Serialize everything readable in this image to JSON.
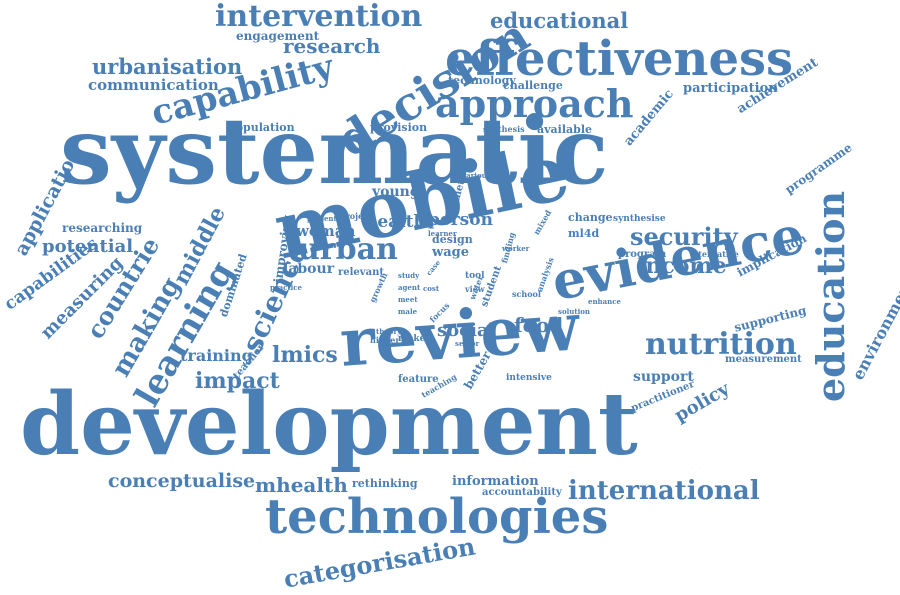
{
  "colors": {
    "word": "#4a7fb5",
    "background": "#ffffff"
  },
  "words": [
    "development",
    "systematic",
    "mobile",
    "review",
    "evidence",
    "effectiveness",
    "technologies",
    "approach",
    "decision",
    "capability",
    "intervention",
    "educational",
    "research",
    "engagement",
    "urbanisation",
    "communication",
    "technology",
    "challenge",
    "participation",
    "population",
    "provision",
    "synthesis",
    "available",
    "academic",
    "achievement",
    "programme",
    "application",
    "researching",
    "potential",
    "capabilities",
    "measuring",
    "countrie",
    "making",
    "learning",
    "middle",
    "science",
    "urban",
    "health",
    "person",
    "woman",
    "security",
    "income",
    "change",
    "synthesise",
    "ml4d",
    "program",
    "alternative",
    "implication",
    "education",
    "environment",
    "nutrition",
    "food",
    "social",
    "labour",
    "relevant",
    "training",
    "teacher",
    "lmics",
    "impact",
    "support",
    "policy",
    "measurement",
    "practitioner",
    "supporting",
    "conceptualise",
    "mhealth",
    "rethinking",
    "information",
    "accountability",
    "international",
    "categorisation",
    "young",
    "method",
    "various",
    "project",
    "present",
    "learner",
    "improving",
    "dominated",
    "practice",
    "growth",
    "design",
    "wage",
    "finding",
    "worker",
    "mixed",
    "analysis",
    "student",
    "school",
    "solution",
    "enhance",
    "tool",
    "view",
    "water",
    "agent",
    "meet",
    "male",
    "theory",
    "higher",
    "maker",
    "focus",
    "feature",
    "better",
    "intensive",
    "sector",
    "teaching",
    "case",
    "study",
    "cost"
  ]
}
